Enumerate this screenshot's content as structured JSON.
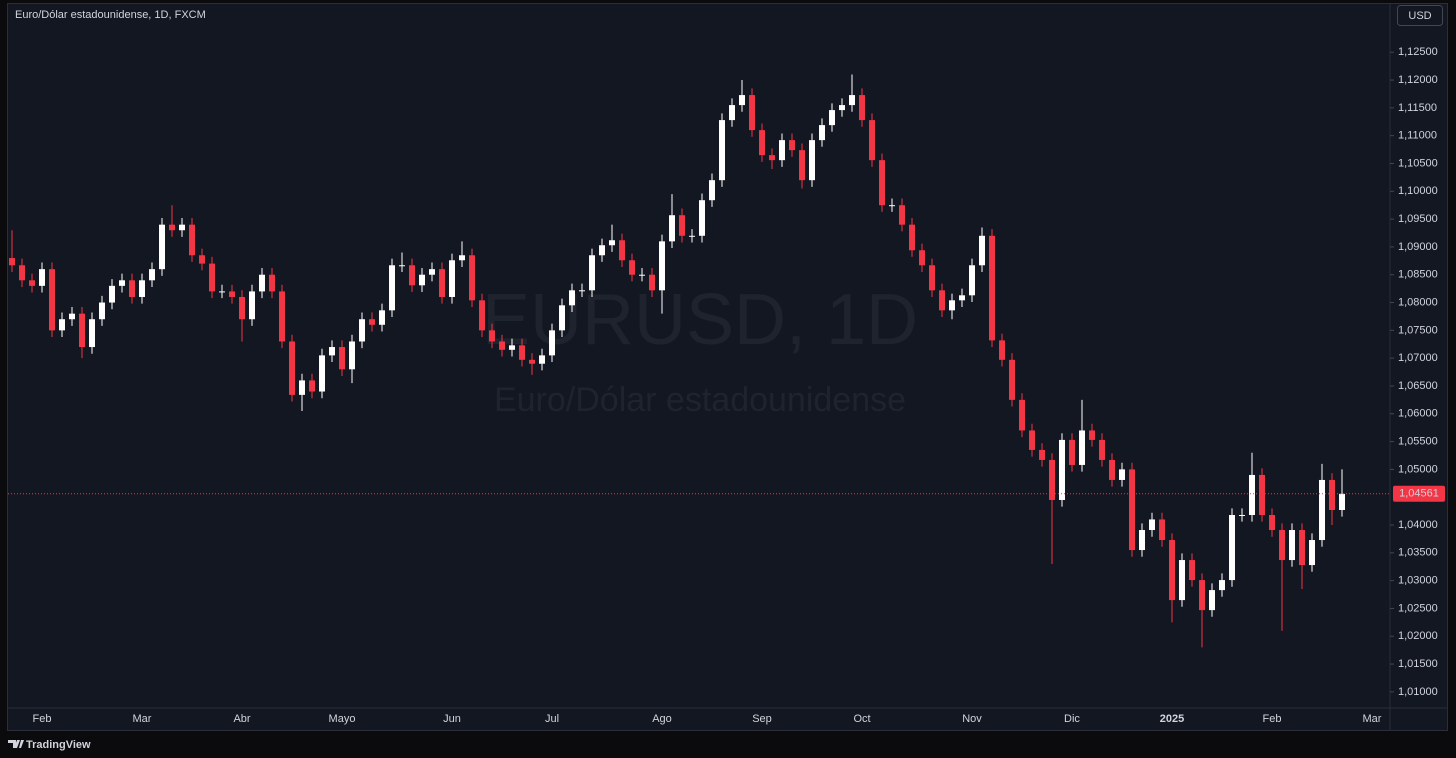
{
  "chart_data": {
    "type": "candlestick",
    "title": "Euro/Dólar estadounidense, 1D, FXCM",
    "watermark_symbol": "EURUSD, 1D",
    "watermark_name": "Euro/Dólar estadounidense",
    "currency": "USD",
    "brand": "TradingView",
    "up_color": "#ffffff",
    "down_color": "#f23645",
    "categories": [
      null,
      null,
      null,
      "Feb",
      null,
      null,
      null,
      null,
      null,
      null,
      null,
      null,
      null,
      "Mar",
      null,
      null,
      null,
      null,
      null,
      null,
      null,
      null,
      null,
      "Abr",
      null,
      null,
      null,
      null,
      null,
      null,
      null,
      null,
      null,
      "Mayo",
      null,
      null,
      null,
      null,
      null,
      null,
      null,
      null,
      null,
      null,
      "Jun",
      null,
      null,
      null,
      null,
      null,
      null,
      null,
      null,
      null,
      "Jul",
      null,
      null,
      null,
      null,
      null,
      null,
      null,
      null,
      null,
      null,
      "Ago",
      null,
      null,
      null,
      null,
      null,
      null,
      null,
      null,
      null,
      "Sep",
      null,
      null,
      null,
      null,
      null,
      null,
      null,
      null,
      null,
      "Oct",
      null,
      null,
      null,
      null,
      null,
      null,
      null,
      null,
      null,
      null,
      "Nov",
      null,
      null,
      null,
      null,
      null,
      null,
      null,
      null,
      null,
      "Dic",
      null,
      null,
      null,
      null,
      null,
      null,
      null,
      null,
      null,
      "2025",
      null,
      null,
      null,
      null,
      null,
      null,
      null,
      null,
      null,
      "Feb",
      null,
      null,
      null,
      null,
      null,
      null,
      null,
      null,
      null,
      "Mar",
      null
    ],
    "open": [
      1.088,
      1.0867,
      1.084,
      1.083,
      1.086,
      1.075,
      1.077,
      1.078,
      1.072,
      1.077,
      1.08,
      1.083,
      1.084,
      1.081,
      1.084,
      1.086,
      1.094,
      1.093,
      1.094,
      1.0885,
      1.087,
      1.082,
      1.082,
      1.081,
      1.077,
      1.082,
      1.085,
      1.082,
      1.073,
      1.0634,
      1.066,
      1.064,
      1.0705,
      1.072,
      1.068,
      1.073,
      1.077,
      1.076,
      1.0786,
      1.0867,
      1.0867,
      1.0831,
      1.085,
      1.086,
      1.081,
      1.0876,
      1.0885,
      1.0804,
      1.075,
      1.073,
      1.0715,
      1.0723,
      1.0697,
      1.069,
      1.0705,
      1.075,
      1.0795,
      1.0822,
      1.0822,
      1.0885,
      1.0903,
      1.0912,
      1.0876,
      1.085,
      1.085,
      1.0822,
      1.091,
      1.0957,
      1.092,
      1.092,
      1.0984,
      1.102,
      1.1128,
      1.1155,
      1.1173,
      1.111,
      1.1065,
      1.1056,
      1.1092,
      1.1074,
      1.102,
      1.1092,
      1.1119,
      1.1146,
      1.1155,
      1.1173,
      1.1128,
      1.1056,
      1.0975,
      1.0975,
      1.094,
      1.0894,
      1.0867,
      1.0822,
      1.0786,
      1.0804,
      1.0813,
      1.0867,
      1.092,
      1.0732,
      1.0697,
      1.0625,
      1.057,
      1.0535,
      1.0517,
      1.0445,
      1.0553,
      1.0508,
      1.057,
      1.0553,
      1.0517,
      1.0481,
      1.05,
      1.0355,
      1.0391,
      1.041,
      1.0373,
      1.0265,
      1.0337,
      1.0301,
      1.0247,
      1.0283,
      1.0301,
      1.0418,
      1.0418,
      1.049,
      1.0418,
      1.0391,
      1.0337,
      1.0391,
      1.0328,
      1.0373,
      1.0481,
      1.0427,
      null,
      null,
      null,
      null
    ],
    "high": [
      1.093,
      1.0879,
      1.0852,
      1.0872,
      1.0872,
      1.0782,
      1.0792,
      1.0792,
      1.0782,
      1.0812,
      1.0842,
      1.0852,
      1.0852,
      1.0852,
      1.0872,
      1.0952,
      1.0975,
      1.0952,
      1.0952,
      1.0897,
      1.0882,
      1.0832,
      1.0832,
      1.0822,
      1.0832,
      1.0862,
      1.0862,
      1.0832,
      1.0742,
      1.0672,
      1.0672,
      1.0717,
      1.0732,
      1.0732,
      1.0742,
      1.0782,
      1.0782,
      1.0798,
      1.0879,
      1.089,
      1.0879,
      1.0862,
      1.0872,
      1.0872,
      1.0888,
      1.091,
      1.0897,
      1.0816,
      1.0762,
      1.0742,
      1.0735,
      1.0735,
      1.0709,
      1.0717,
      1.0762,
      1.0807,
      1.0834,
      1.0834,
      1.0897,
      1.0915,
      1.094,
      1.0924,
      1.0888,
      1.0862,
      1.0862,
      1.0922,
      1.0995,
      1.0969,
      1.0932,
      1.0996,
      1.1032,
      1.114,
      1.1167,
      1.12,
      1.1185,
      1.1122,
      1.1077,
      1.1104,
      1.1104,
      1.1086,
      1.1104,
      1.1131,
      1.1158,
      1.1167,
      1.121,
      1.1185,
      1.114,
      1.1068,
      1.0987,
      1.0987,
      1.0952,
      1.0906,
      1.0879,
      1.0834,
      1.0816,
      1.0825,
      1.0879,
      1.0935,
      1.0932,
      1.0744,
      1.0709,
      1.0637,
      1.0582,
      1.0547,
      1.0529,
      1.0565,
      1.0565,
      1.0625,
      1.0582,
      1.0565,
      1.0529,
      1.0512,
      1.0512,
      1.0403,
      1.0422,
      1.0422,
      1.0385,
      1.0349,
      1.0349,
      1.0313,
      1.0295,
      1.0313,
      1.043,
      1.043,
      1.053,
      1.0502,
      1.043,
      1.0403,
      1.0403,
      1.0403,
      1.0385,
      1.051,
      1.0493,
      1.05,
      null,
      null,
      null,
      null
    ],
    "low": [
      1.0855,
      1.0828,
      1.0818,
      1.0818,
      1.0738,
      1.0738,
      1.0758,
      1.07,
      1.0708,
      1.0758,
      1.0788,
      1.0818,
      1.0798,
      1.0798,
      1.0828,
      1.0848,
      1.0918,
      1.0918,
      1.0873,
      1.0858,
      1.0808,
      1.0808,
      1.0798,
      1.073,
      1.0758,
      1.0808,
      1.0808,
      1.0718,
      1.0622,
      1.0605,
      1.0628,
      1.0628,
      1.0693,
      1.0668,
      1.0655,
      1.0718,
      1.0748,
      1.0748,
      1.0774,
      1.0855,
      1.0819,
      1.0819,
      1.0838,
      1.0798,
      1.0798,
      1.0864,
      1.0792,
      1.0738,
      1.0718,
      1.0703,
      1.0703,
      1.0685,
      1.067,
      1.0678,
      1.0693,
      1.0738,
      1.0783,
      1.081,
      1.081,
      1.0873,
      1.0891,
      1.0864,
      1.0838,
      1.0838,
      1.081,
      1.078,
      1.0898,
      1.0908,
      1.0908,
      1.0908,
      1.0972,
      1.1008,
      1.1116,
      1.1143,
      1.1098,
      1.1053,
      1.104,
      1.1044,
      1.1062,
      1.1005,
      1.1008,
      1.108,
      1.1107,
      1.1134,
      1.1143,
      1.1116,
      1.1044,
      1.0963,
      1.0963,
      1.0928,
      1.0882,
      1.0855,
      1.081,
      1.0774,
      1.077,
      1.0792,
      1.0801,
      1.0855,
      1.072,
      1.0685,
      1.0613,
      1.0558,
      1.0523,
      1.0505,
      1.033,
      1.0433,
      1.0496,
      1.0496,
      1.0541,
      1.0505,
      1.0469,
      1.0469,
      1.0343,
      1.0343,
      1.0379,
      1.0361,
      1.0225,
      1.0253,
      1.0289,
      1.018,
      1.0235,
      1.0271,
      1.0289,
      1.0406,
      1.0406,
      1.0406,
      1.0379,
      1.021,
      1.0325,
      1.0285,
      1.0316,
      1.0361,
      1.04,
      1.0415,
      null,
      null,
      null,
      null
    ],
    "close": [
      1.0867,
      1.084,
      1.083,
      1.086,
      1.075,
      1.077,
      1.078,
      1.072,
      1.077,
      1.08,
      1.083,
      1.084,
      1.081,
      1.084,
      1.086,
      1.094,
      1.093,
      1.094,
      1.0885,
      1.087,
      1.082,
      1.082,
      1.081,
      1.077,
      1.082,
      1.085,
      1.082,
      1.073,
      1.0634,
      1.066,
      1.064,
      1.0705,
      1.072,
      1.068,
      1.073,
      1.077,
      1.076,
      1.0786,
      1.0867,
      1.0867,
      1.0831,
      1.085,
      1.086,
      1.081,
      1.0876,
      1.0885,
      1.0804,
      1.075,
      1.073,
      1.0715,
      1.0723,
      1.0697,
      1.069,
      1.0705,
      1.075,
      1.0795,
      1.0822,
      1.0822,
      1.0885,
      1.0903,
      1.0912,
      1.0876,
      1.085,
      1.085,
      1.0822,
      1.091,
      1.0957,
      1.092,
      1.092,
      1.0984,
      1.102,
      1.1128,
      1.1155,
      1.1173,
      1.111,
      1.1065,
      1.1056,
      1.1092,
      1.1074,
      1.102,
      1.1092,
      1.1119,
      1.1146,
      1.1155,
      1.1173,
      1.1128,
      1.1056,
      1.0975,
      1.0975,
      1.094,
      1.0894,
      1.0867,
      1.0822,
      1.0786,
      1.0804,
      1.0813,
      1.0867,
      1.092,
      1.0732,
      1.0697,
      1.0625,
      1.057,
      1.0535,
      1.0517,
      1.0445,
      1.0553,
      1.0508,
      1.057,
      1.0553,
      1.0517,
      1.0481,
      1.05,
      1.0355,
      1.0391,
      1.041,
      1.0373,
      1.0265,
      1.0337,
      1.0301,
      1.0247,
      1.0283,
      1.0301,
      1.0418,
      1.0418,
      1.049,
      1.0418,
      1.0391,
      1.0337,
      1.0391,
      1.0328,
      1.0373,
      1.0481,
      1.0427,
      1.0456,
      null,
      null,
      null,
      null
    ],
    "ylim": [
      1.0071,
      1.129
    ],
    "yticks": [
      {
        "value": 1.01,
        "label": "1,01000"
      },
      {
        "value": 1.015,
        "label": "1,01500"
      },
      {
        "value": 1.02,
        "label": "1,02000"
      },
      {
        "value": 1.025,
        "label": "1,02500"
      },
      {
        "value": 1.03,
        "label": "1,03000"
      },
      {
        "value": 1.035,
        "label": "1,03500"
      },
      {
        "value": 1.04,
        "label": "1,04000"
      },
      {
        "value": 1.05,
        "label": "1,05000"
      },
      {
        "value": 1.055,
        "label": "1,05500"
      },
      {
        "value": 1.06,
        "label": "1,06000"
      },
      {
        "value": 1.065,
        "label": "1,06500"
      },
      {
        "value": 1.07,
        "label": "1,07000"
      },
      {
        "value": 1.075,
        "label": "1,07500"
      },
      {
        "value": 1.08,
        "label": "1,08000"
      },
      {
        "value": 1.085,
        "label": "1,08500"
      },
      {
        "value": 1.09,
        "label": "1,09000"
      },
      {
        "value": 1.095,
        "label": "1,09500"
      },
      {
        "value": 1.1,
        "label": "1,10000"
      },
      {
        "value": 1.105,
        "label": "1,10500"
      },
      {
        "value": 1.11,
        "label": "1,11000"
      },
      {
        "value": 1.115,
        "label": "1,11500"
      },
      {
        "value": 1.12,
        "label": "1,12000"
      },
      {
        "value": 1.125,
        "label": "1,12500"
      }
    ],
    "last_price": {
      "value": 1.04561,
      "label": "1,04561"
    }
  }
}
